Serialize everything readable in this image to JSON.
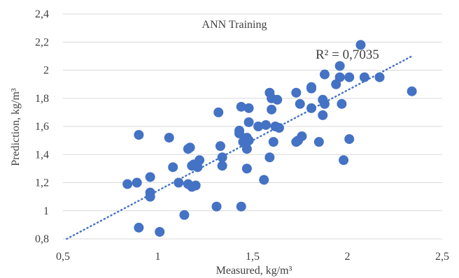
{
  "chart_data": {
    "type": "scatter",
    "annotation": "ANN Training",
    "xlabel": "Measured, kg/m³",
    "ylabel": "Prediction, kg/m³",
    "xlim": [
      0.5,
      2.5
    ],
    "ylim": [
      0.8,
      2.4
    ],
    "x_ticks": [
      0.5,
      1,
      1.5,
      2,
      2.5
    ],
    "x_tick_labels": [
      "0,5",
      "1",
      "1,5",
      "2",
      "2,5"
    ],
    "y_ticks": [
      0.8,
      1.0,
      1.2,
      1.4,
      1.6,
      1.8,
      2.0,
      2.2,
      2.4
    ],
    "y_tick_labels": [
      "0,8",
      "1",
      "1,2",
      "1,4",
      "1,6",
      "1,8",
      "2",
      "2,2",
      "2,4"
    ],
    "grid": "horizontal",
    "r_squared_label": "R² = 0,7035",
    "trendline": {
      "style": "dotted",
      "x": [
        0.52,
        2.34
      ],
      "y": [
        0.8,
        2.1
      ]
    },
    "colors": {
      "marker": "#4472C4",
      "trendline": "#4472C4",
      "grid": "#d9d9d9",
      "text": "#404040"
    },
    "points": [
      {
        "x": 0.84,
        "y": 1.19
      },
      {
        "x": 0.89,
        "y": 1.2
      },
      {
        "x": 0.9,
        "y": 1.54
      },
      {
        "x": 0.9,
        "y": 0.88
      },
      {
        "x": 0.96,
        "y": 1.24
      },
      {
        "x": 0.96,
        "y": 1.13
      },
      {
        "x": 0.96,
        "y": 1.1
      },
      {
        "x": 1.01,
        "y": 0.85
      },
      {
        "x": 1.06,
        "y": 1.52
      },
      {
        "x": 1.08,
        "y": 1.31
      },
      {
        "x": 1.11,
        "y": 1.2
      },
      {
        "x": 1.14,
        "y": 0.97
      },
      {
        "x": 1.16,
        "y": 1.44
      },
      {
        "x": 1.17,
        "y": 1.45
      },
      {
        "x": 1.16,
        "y": 1.19
      },
      {
        "x": 1.18,
        "y": 1.17
      },
      {
        "x": 1.18,
        "y": 1.32
      },
      {
        "x": 1.19,
        "y": 1.33
      },
      {
        "x": 1.2,
        "y": 1.18
      },
      {
        "x": 1.21,
        "y": 1.31
      },
      {
        "x": 1.22,
        "y": 1.36
      },
      {
        "x": 1.31,
        "y": 1.03
      },
      {
        "x": 1.32,
        "y": 1.7
      },
      {
        "x": 1.33,
        "y": 1.46
      },
      {
        "x": 1.34,
        "y": 1.38
      },
      {
        "x": 1.34,
        "y": 1.32
      },
      {
        "x": 1.43,
        "y": 1.57
      },
      {
        "x": 1.43,
        "y": 1.55
      },
      {
        "x": 1.44,
        "y": 1.74
      },
      {
        "x": 1.44,
        "y": 1.03
      },
      {
        "x": 1.45,
        "y": 1.49
      },
      {
        "x": 1.46,
        "y": 1.48
      },
      {
        "x": 1.47,
        "y": 1.52
      },
      {
        "x": 1.47,
        "y": 1.44
      },
      {
        "x": 1.47,
        "y": 1.3
      },
      {
        "x": 1.48,
        "y": 1.73
      },
      {
        "x": 1.48,
        "y": 1.63
      },
      {
        "x": 1.48,
        "y": 1.5
      },
      {
        "x": 1.53,
        "y": 1.6
      },
      {
        "x": 1.56,
        "y": 1.22
      },
      {
        "x": 1.57,
        "y": 1.61
      },
      {
        "x": 1.59,
        "y": 1.38
      },
      {
        "x": 1.59,
        "y": 1.84
      },
      {
        "x": 1.6,
        "y": 1.72
      },
      {
        "x": 1.6,
        "y": 1.8
      },
      {
        "x": 1.61,
        "y": 1.49
      },
      {
        "x": 1.62,
        "y": 1.6
      },
      {
        "x": 1.63,
        "y": 1.79
      },
      {
        "x": 1.64,
        "y": 1.59
      },
      {
        "x": 1.73,
        "y": 1.84
      },
      {
        "x": 1.73,
        "y": 1.49
      },
      {
        "x": 1.74,
        "y": 1.5
      },
      {
        "x": 1.75,
        "y": 1.76
      },
      {
        "x": 1.76,
        "y": 1.53
      },
      {
        "x": 1.81,
        "y": 1.88
      },
      {
        "x": 1.81,
        "y": 1.87
      },
      {
        "x": 1.81,
        "y": 1.73
      },
      {
        "x": 1.85,
        "y": 1.49
      },
      {
        "x": 1.87,
        "y": 1.68
      },
      {
        "x": 1.87,
        "y": 1.79
      },
      {
        "x": 1.88,
        "y": 1.97
      },
      {
        "x": 1.88,
        "y": 1.76
      },
      {
        "x": 1.94,
        "y": 1.9
      },
      {
        "x": 1.96,
        "y": 2.03
      },
      {
        "x": 1.96,
        "y": 1.95
      },
      {
        "x": 1.97,
        "y": 1.76
      },
      {
        "x": 1.98,
        "y": 1.36
      },
      {
        "x": 2.01,
        "y": 1.95
      },
      {
        "x": 2.01,
        "y": 1.51
      },
      {
        "x": 2.07,
        "y": 2.18
      },
      {
        "x": 2.09,
        "y": 1.95
      },
      {
        "x": 2.17,
        "y": 1.95
      },
      {
        "x": 2.34,
        "y": 1.85
      }
    ]
  }
}
